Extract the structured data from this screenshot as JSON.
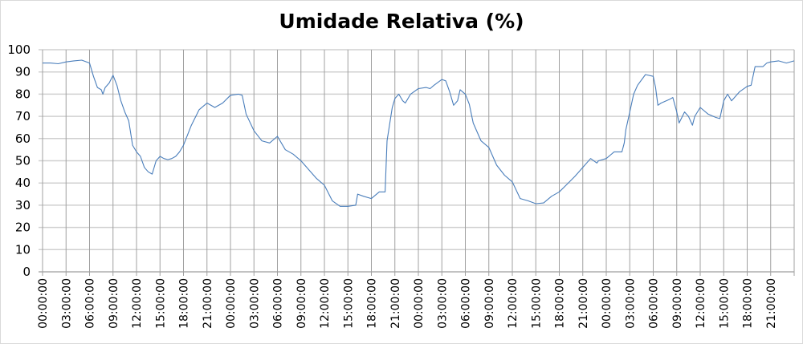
{
  "chart_data": {
    "type": "line",
    "title": "Umidade Relativa (%)",
    "xlabel": "",
    "ylabel": "",
    "ylim": [
      0,
      100
    ],
    "yticks": [
      0,
      10,
      20,
      30,
      40,
      50,
      60,
      70,
      80,
      90,
      100
    ],
    "xtick_labels": [
      "00:00:00",
      "03:00:00",
      "06:00:00",
      "09:00:00",
      "12:00:00",
      "15:00:00",
      "18:00:00",
      "21:00:00",
      "00:00:00",
      "03:00:00",
      "06:00:00",
      "09:00:00",
      "12:00:00",
      "15:00:00",
      "18:00:00",
      "21:00:00",
      "00:00:00",
      "03:00:00",
      "06:00:00",
      "09:00:00",
      "12:00:00",
      "15:00:00",
      "18:00:00",
      "21:00:00",
      "00:00:00",
      "03:00:00",
      "06:00:00",
      "09:00:00",
      "12:00:00",
      "15:00:00",
      "18:00:00",
      "21:00:00"
    ],
    "grid": true,
    "legend": "none",
    "line_color": "#4a7ebb",
    "series": [
      {
        "points": [
          [
            "00:00",
            94
          ],
          [
            "01:00",
            94
          ],
          [
            "02:00",
            93.7
          ],
          [
            "03:00",
            94.5
          ],
          [
            "04:00",
            95
          ],
          [
            "05:00",
            95.3
          ],
          [
            "06:00",
            94
          ],
          [
            "06:30",
            88
          ],
          [
            "07:00",
            83
          ],
          [
            "07:30",
            82
          ],
          [
            "07:42",
            80
          ],
          [
            "08:00",
            83
          ],
          [
            "08:30",
            85
          ],
          [
            "09:00",
            88.5
          ],
          [
            "09:30",
            84
          ],
          [
            "10:00",
            77
          ],
          [
            "10:30",
            72
          ],
          [
            "11:00",
            68
          ],
          [
            "11:30",
            57
          ],
          [
            "12:00",
            54
          ],
          [
            "12:30",
            52
          ],
          [
            "13:00",
            47
          ],
          [
            "13:30",
            45
          ],
          [
            "14:00",
            44
          ],
          [
            "14:30",
            50
          ],
          [
            "15:00",
            52
          ],
          [
            "15:30",
            51
          ],
          [
            "16:00",
            50.5
          ],
          [
            "16:30",
            51
          ],
          [
            "17:00",
            52
          ],
          [
            "17:30",
            54
          ],
          [
            "18:00",
            57
          ],
          [
            "19:00",
            66
          ],
          [
            "20:00",
            73
          ],
          [
            "21:00",
            76
          ],
          [
            "22:00",
            74
          ],
          [
            "23:00",
            76
          ],
          [
            "00:00",
            79.5
          ],
          [
            "01:00",
            80
          ],
          [
            "01:30",
            79.5
          ],
          [
            "02:00",
            71
          ],
          [
            "03:00",
            63.5
          ],
          [
            "04:00",
            59
          ],
          [
            "05:00",
            58
          ],
          [
            "06:00",
            61
          ],
          [
            "07:00",
            55
          ],
          [
            "08:00",
            53
          ],
          [
            "09:00",
            50
          ],
          [
            "10:00",
            46
          ],
          [
            "11:00",
            42
          ],
          [
            "12:00",
            39
          ],
          [
            "13:00",
            32
          ],
          [
            "14:00",
            29.5
          ],
          [
            "15:00",
            29.5
          ],
          [
            "16:00",
            30
          ],
          [
            "16:15",
            35
          ],
          [
            "17:00",
            34
          ],
          [
            "18:00",
            33
          ],
          [
            "19:00",
            36
          ],
          [
            "19:45",
            36
          ],
          [
            "20:00",
            59
          ],
          [
            "20:40",
            74
          ],
          [
            "21:00",
            78
          ],
          [
            "21:30",
            80
          ],
          [
            "22:00",
            77
          ],
          [
            "22:20",
            76
          ],
          [
            "23:00",
            80
          ],
          [
            "00:00",
            82.5
          ],
          [
            "01:00",
            83
          ],
          [
            "01:30",
            82.5
          ],
          [
            "02:00",
            84
          ],
          [
            "03:00",
            86.6
          ],
          [
            "03:30",
            86
          ],
          [
            "04:00",
            81
          ],
          [
            "04:30",
            75
          ],
          [
            "05:00",
            77
          ],
          [
            "05:20",
            82
          ],
          [
            "06:00",
            80
          ],
          [
            "06:30",
            75.5
          ],
          [
            "07:00",
            67
          ],
          [
            "08:00",
            59
          ],
          [
            "09:00",
            56
          ],
          [
            "10:00",
            48
          ],
          [
            "11:00",
            43.5
          ],
          [
            "12:00",
            40.5
          ],
          [
            "13:00",
            33
          ],
          [
            "14:00",
            32
          ],
          [
            "15:00",
            30.7
          ],
          [
            "16:00",
            31
          ],
          [
            "17:00",
            34
          ],
          [
            "18:00",
            36
          ],
          [
            "19:00",
            39.5
          ],
          [
            "20:00",
            43
          ],
          [
            "21:00",
            47
          ],
          [
            "22:00",
            51
          ],
          [
            "22:48",
            49
          ],
          [
            "23:00",
            50
          ],
          [
            "00:00",
            51
          ],
          [
            "01:00",
            54
          ],
          [
            "02:00",
            54
          ],
          [
            "02:18",
            58
          ],
          [
            "02:30",
            64
          ],
          [
            "03:00",
            72
          ],
          [
            "03:30",
            80
          ],
          [
            "04:00",
            84
          ],
          [
            "05:00",
            88.8
          ],
          [
            "06:00",
            88
          ],
          [
            "06:18",
            83
          ],
          [
            "06:36",
            75
          ],
          [
            "07:00",
            76
          ],
          [
            "08:00",
            77.5
          ],
          [
            "08:30",
            78.5
          ],
          [
            "09:00",
            72
          ],
          [
            "09:18",
            67
          ],
          [
            "10:00",
            72
          ],
          [
            "10:30",
            70
          ],
          [
            "11:00",
            66
          ],
          [
            "11:18",
            70
          ],
          [
            "12:00",
            74
          ],
          [
            "13:00",
            71
          ],
          [
            "14:00",
            69.5
          ],
          [
            "14:30",
            69
          ],
          [
            "15:00",
            77
          ],
          [
            "15:30",
            80
          ],
          [
            "16:00",
            77
          ],
          [
            "17:00",
            81
          ],
          [
            "18:00",
            83.5
          ],
          [
            "18:30",
            84
          ],
          [
            "19:00",
            92.4
          ],
          [
            "20:00",
            92.4
          ],
          [
            "20:30",
            94
          ],
          [
            "21:00",
            94.5
          ],
          [
            "22:00",
            95
          ],
          [
            "23:00",
            94
          ],
          [
            "00:00",
            95
          ]
        ]
      }
    ]
  }
}
